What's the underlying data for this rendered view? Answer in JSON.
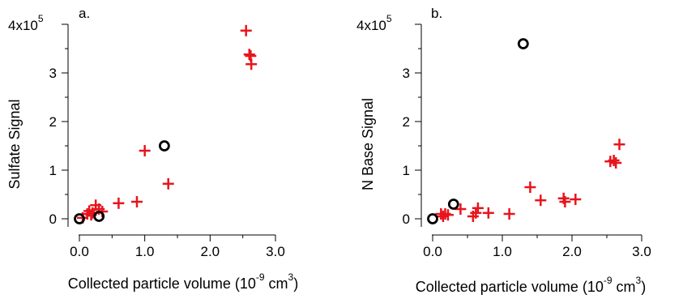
{
  "chart_data": [
    {
      "type": "scatter",
      "panel_label": "a.",
      "xlabel": "Collected particle volume (10",
      "xlabel_exp": "-9",
      "xlabel_unit": " cm",
      "xlabel_unit_exp": "3",
      "xlabel_close": ")",
      "ylabel": "Sulfate Signal",
      "y_scale_label": "4x10",
      "y_scale_exp": "5",
      "xlim": [
        -0.15,
        3.0
      ],
      "ylim": [
        -0.1,
        4.0
      ],
      "x_ticks": [
        0.0,
        1.0,
        2.0,
        3.0
      ],
      "x_tick_labels": [
        "0.0",
        "1.0",
        "2.0",
        "3.0"
      ],
      "y_ticks": [
        0,
        1,
        2,
        3
      ],
      "y_tick_labels": [
        "0",
        "1",
        "2",
        "3"
      ],
      "units_note": "y values in units of 10^5",
      "series": [
        {
          "marker": "plus",
          "color": "#e8141c",
          "points": [
            [
              0.05,
              0.02
            ],
            [
              0.12,
              0.1
            ],
            [
              0.15,
              0.16
            ],
            [
              0.18,
              0.08
            ],
            [
              0.2,
              0.12
            ],
            [
              0.25,
              0.28
            ],
            [
              0.3,
              0.2
            ],
            [
              0.35,
              0.15
            ],
            [
              0.6,
              0.32
            ],
            [
              0.88,
              0.35
            ],
            [
              1.0,
              1.4
            ],
            [
              1.36,
              0.72
            ],
            [
              2.55,
              3.87
            ],
            [
              2.6,
              3.38
            ],
            [
              2.62,
              3.35
            ],
            [
              2.63,
              3.18
            ]
          ]
        },
        {
          "marker": "circle",
          "color": "#000000",
          "points": [
            [
              0.0,
              0.0
            ],
            [
              0.3,
              0.05
            ],
            [
              1.3,
              1.5
            ]
          ]
        }
      ]
    },
    {
      "type": "scatter",
      "panel_label": "b.",
      "xlabel": "Collected particle volume (10",
      "xlabel_exp": "-9",
      "xlabel_unit": " cm",
      "xlabel_unit_exp": "3",
      "xlabel_close": ")",
      "ylabel": "N Base Signal",
      "y_scale_label": "4x10",
      "y_scale_exp": "5",
      "xlim": [
        -0.15,
        3.0
      ],
      "ylim": [
        -0.1,
        4.0
      ],
      "x_ticks": [
        0.0,
        1.0,
        2.0,
        3.0
      ],
      "x_tick_labels": [
        "0.0",
        "1.0",
        "2.0",
        "3.0"
      ],
      "y_ticks": [
        0,
        1,
        2,
        3
      ],
      "y_tick_labels": [
        "0",
        "1",
        "2",
        "3"
      ],
      "units_note": "y values in units of 10^5",
      "series": [
        {
          "marker": "plus",
          "color": "#e8141c",
          "points": [
            [
              0.12,
              0.1
            ],
            [
              0.15,
              0.05
            ],
            [
              0.18,
              0.1
            ],
            [
              0.22,
              0.08
            ],
            [
              0.4,
              0.2
            ],
            [
              0.58,
              0.05
            ],
            [
              0.62,
              0.12
            ],
            [
              0.65,
              0.22
            ],
            [
              0.8,
              0.12
            ],
            [
              1.1,
              0.1
            ],
            [
              1.4,
              0.65
            ],
            [
              1.55,
              0.38
            ],
            [
              1.88,
              0.42
            ],
            [
              1.9,
              0.35
            ],
            [
              2.05,
              0.4
            ],
            [
              2.55,
              1.18
            ],
            [
              2.6,
              1.2
            ],
            [
              2.63,
              1.15
            ],
            [
              2.68,
              1.53
            ]
          ]
        },
        {
          "marker": "circle",
          "color": "#000000",
          "points": [
            [
              0.0,
              0.0
            ],
            [
              0.3,
              0.3
            ],
            [
              1.3,
              3.6
            ]
          ]
        }
      ]
    }
  ]
}
